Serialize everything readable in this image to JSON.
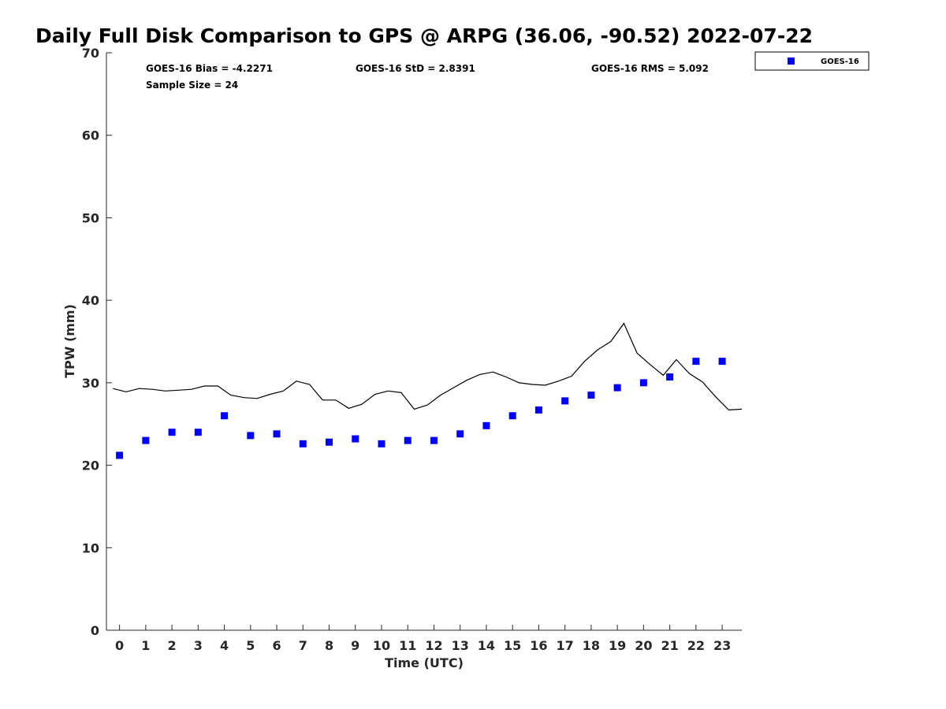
{
  "chart_data": {
    "type": "scatter",
    "title": "Daily Full Disk Comparison to GPS @ ARPG (36.06, -90.52) 2022-07-22",
    "xlabel": "Time (UTC)",
    "ylabel": "TPW (mm)",
    "xlim": [
      -0.5,
      23.75
    ],
    "ylim": [
      0,
      70
    ],
    "x_ticks": [
      "0",
      "1",
      "2",
      "3",
      "4",
      "5",
      "6",
      "7",
      "8",
      "9",
      "10",
      "11",
      "12",
      "13",
      "14",
      "15",
      "16",
      "17",
      "18",
      "19",
      "20",
      "21",
      "22",
      "23"
    ],
    "y_ticks": [
      "0",
      "10",
      "20",
      "30",
      "40",
      "50",
      "60",
      "70"
    ],
    "grid": false,
    "legend": {
      "position": "top-right",
      "entries": [
        "GOES-16"
      ]
    },
    "stats": {
      "bias": "GOES-16 Bias = -4.2271",
      "std": "GOES-16 StD = 2.8391",
      "rms": "GOES-16 RMS = 5.092",
      "sample_size": "Sample Size = 24"
    },
    "series": [
      {
        "name": "GOES-16",
        "kind": "scatter",
        "marker": "square",
        "color": "#0000ff",
        "x": [
          0,
          1,
          2,
          3,
          4,
          5,
          6,
          7,
          8,
          9,
          10,
          11,
          12,
          13,
          14,
          15,
          16,
          17,
          18,
          19,
          20,
          21,
          22,
          23
        ],
        "y": [
          21.2,
          23.0,
          24.0,
          24.0,
          26.0,
          23.6,
          23.8,
          22.6,
          22.8,
          23.2,
          22.6,
          23.0,
          23.0,
          23.8,
          24.8,
          26.0,
          26.7,
          27.8,
          28.5,
          29.4,
          30.0,
          30.7,
          32.6,
          32.6
        ]
      },
      {
        "kind": "line",
        "color": "#000000",
        "x": [
          -0.25,
          0.25,
          0.75,
          1.25,
          1.75,
          2.25,
          2.75,
          3.25,
          3.75,
          4.25,
          4.75,
          5.25,
          5.75,
          6.25,
          6.75,
          7.25,
          7.75,
          8.25,
          8.75,
          9.25,
          9.75,
          10.25,
          10.75,
          11.25,
          11.75,
          12.25,
          12.75,
          13.25,
          13.75,
          14.25,
          14.75,
          15.25,
          15.75,
          16.25,
          16.75,
          17.25,
          17.75,
          18.25,
          18.75,
          19.25,
          19.75,
          20.25,
          20.75,
          21.25,
          21.75,
          22.25,
          22.75,
          23.25,
          23.75
        ],
        "y": [
          29.3,
          28.9,
          29.3,
          29.2,
          29.0,
          29.1,
          29.2,
          29.6,
          29.6,
          28.5,
          28.2,
          28.1,
          28.6,
          29.0,
          30.2,
          29.8,
          27.9,
          27.9,
          26.9,
          27.4,
          28.6,
          29.0,
          28.8,
          26.8,
          27.3,
          28.5,
          29.4,
          30.3,
          31.0,
          31.3,
          30.7,
          30.0,
          29.8,
          29.7,
          30.2,
          30.8,
          32.6,
          34.0,
          35.0,
          37.2,
          33.6,
          32.2,
          30.9,
          32.8,
          31.1,
          30.1,
          28.3,
          26.7,
          26.8
        ]
      }
    ]
  }
}
